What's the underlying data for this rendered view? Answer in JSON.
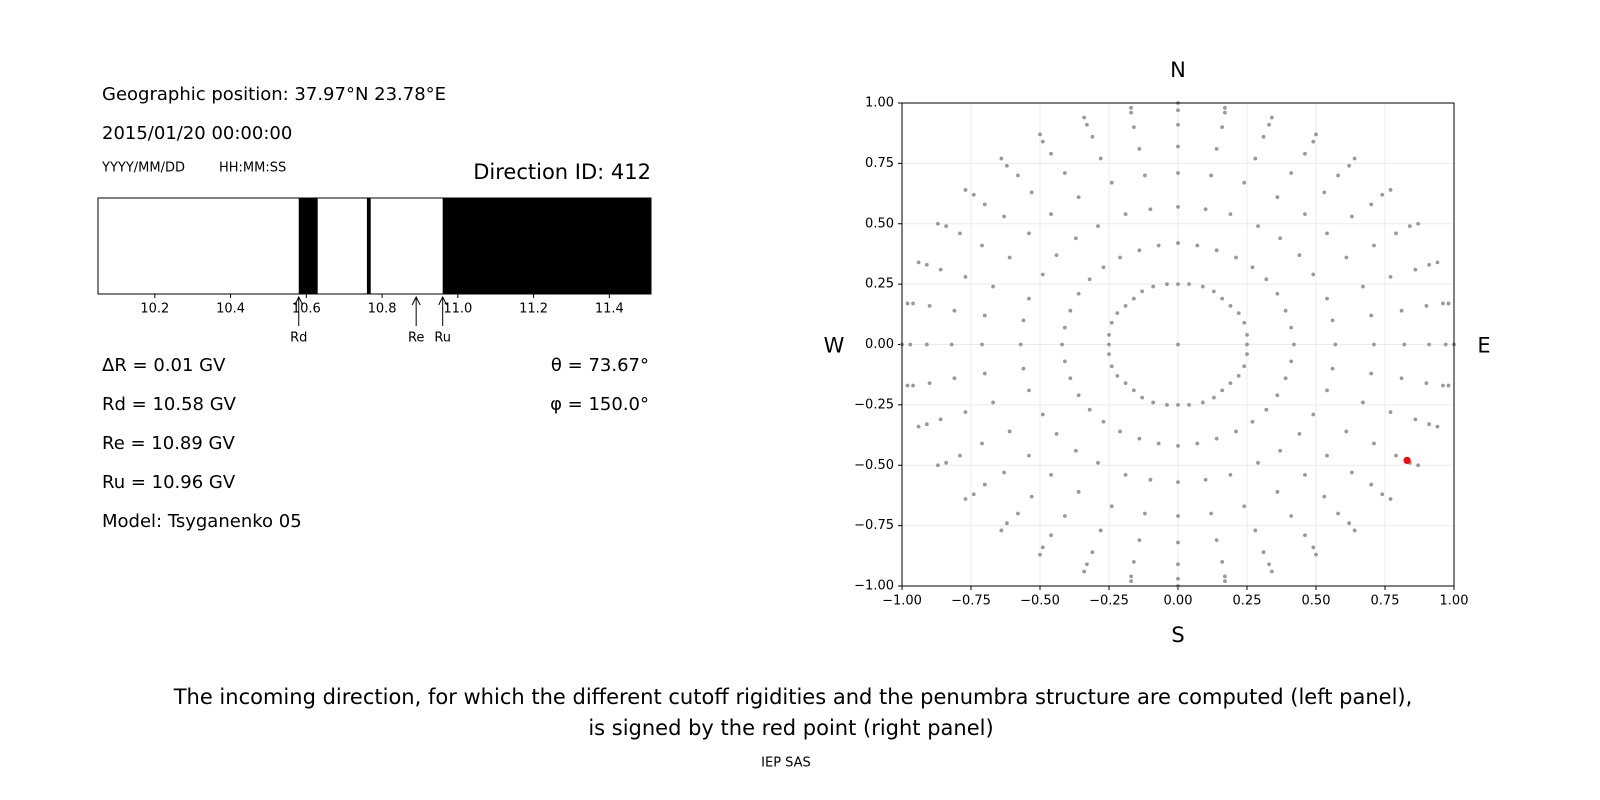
{
  "info": {
    "geographic_position": "Geographic position: 37.97°N 23.78°E",
    "datetime": "2015/01/20 00:00:00",
    "date_format": "YYYY/MM/DD",
    "time_format": "HH:MM:SS",
    "direction_id": "Direction ID: 412",
    "delta_r": "ΔR = 0.01 GV",
    "rd": "Rd = 10.58 GV",
    "re": "Re = 10.89 GV",
    "ru": "Ru = 10.96 GV",
    "model": "Model: Tsyganenko 05",
    "theta": "θ = 73.67°",
    "phi": "φ = 150.0°"
  },
  "chart_data": [
    {
      "type": "penumbra",
      "xlim": [
        10.05,
        11.51
      ],
      "xticks": [
        10.2,
        10.4,
        10.6,
        10.8,
        {
          "value": 11,
          "label": "11.0"
        },
        11.2,
        11.4
      ],
      "bands": [
        [
          10.58,
          10.63
        ],
        [
          10.76,
          10.77
        ],
        [
          10.96,
          11.51
        ]
      ],
      "band_color": "#000000",
      "markers": [
        {
          "label": "Rd",
          "value": 10.58
        },
        {
          "label": "Re",
          "value": 10.89
        },
        {
          "label": "Ru",
          "value": 10.96
        }
      ]
    },
    {
      "type": "scatter",
      "xlim": [
        -1,
        1
      ],
      "ylim": [
        -1,
        1
      ],
      "xticks": [
        {
          "value": -1,
          "label": "−1.00"
        },
        {
          "value": -0.75,
          "label": "−0.75"
        },
        {
          "value": -0.5,
          "label": "−0.50"
        },
        {
          "value": -0.25,
          "label": "−0.25"
        },
        {
          "value": 0,
          "label": "0.00"
        },
        {
          "value": 0.25,
          "label": "0.25"
        },
        {
          "value": 0.5,
          "label": "0.50"
        },
        {
          "value": 0.75,
          "label": "0.75"
        },
        {
          "value": 1,
          "label": "1.00"
        }
      ],
      "yticks": [
        {
          "value": -1,
          "label": "−1.00"
        },
        {
          "value": -0.75,
          "label": "−0.75"
        },
        {
          "value": -0.5,
          "label": "−0.50"
        },
        {
          "value": -0.25,
          "label": "−0.25"
        },
        {
          "value": 0,
          "label": "0.00"
        },
        {
          "value": 0.25,
          "label": "0.25"
        },
        {
          "value": 0.5,
          "label": "0.50"
        },
        {
          "value": 0.75,
          "label": "0.75"
        },
        {
          "value": 1,
          "label": "1.00"
        }
      ],
      "grid": true,
      "directions": [
        "N",
        "S",
        "W",
        "E"
      ],
      "series": [
        {
          "color": "#999999",
          "x": [
            0,
            0.25,
            0.25,
            0.24,
            0.22,
            0.19,
            0.16,
            0.13,
            0.09,
            0.04,
            0,
            -0.04,
            -0.09,
            -0.13,
            -0.16,
            -0.19,
            -0.22,
            -0.24,
            -0.25,
            -0.25,
            -0.25,
            -0.24,
            -0.22,
            -0.19,
            -0.16,
            -0.13,
            -0.09,
            -0.04,
            0,
            0.04,
            0.09,
            0.13,
            0.16,
            0.19,
            0.22,
            0.24,
            0.25,
            0.42,
            0.41,
            0.39,
            0.36,
            0.32,
            0.27,
            0.21,
            0.14,
            0.07,
            0,
            -0.07,
            -0.14,
            -0.21,
            -0.27,
            -0.32,
            -0.36,
            -0.39,
            -0.41,
            -0.42,
            -0.41,
            -0.39,
            -0.36,
            -0.32,
            -0.27,
            -0.21,
            -0.14,
            -0.07,
            0,
            0.07,
            0.14,
            0.21,
            0.27,
            0.32,
            0.36,
            0.39,
            0.41,
            0.57,
            0.56,
            0.54,
            0.49,
            0.44,
            0.37,
            0.29,
            0.19,
            0.1,
            0,
            -0.1,
            -0.19,
            -0.29,
            -0.37,
            -0.44,
            -0.49,
            -0.54,
            -0.56,
            -0.57,
            -0.56,
            -0.54,
            -0.49,
            -0.44,
            -0.37,
            -0.29,
            -0.19,
            -0.1,
            0,
            0.1,
            0.19,
            0.29,
            0.37,
            0.44,
            0.49,
            0.54,
            0.56,
            0.71,
            0.7,
            0.67,
            0.61,
            0.54,
            0.46,
            0.36,
            0.24,
            0.12,
            0,
            -0.12,
            -0.24,
            -0.36,
            -0.46,
            -0.54,
            -0.61,
            -0.67,
            -0.7,
            -0.71,
            -0.7,
            -0.67,
            -0.61,
            -0.54,
            -0.46,
            -0.36,
            -0.24,
            -0.12,
            0,
            0.12,
            0.24,
            0.36,
            0.46,
            0.54,
            0.61,
            0.67,
            0.7,
            0.82,
            0.81,
            0.77,
            0.71,
            0.63,
            0.53,
            0.41,
            0.28,
            0.14,
            0,
            -0.14,
            -0.28,
            -0.41,
            -0.53,
            -0.63,
            -0.71,
            -0.77,
            -0.81,
            -0.82,
            -0.81,
            -0.77,
            -0.71,
            -0.63,
            -0.53,
            -0.41,
            -0.28,
            -0.14,
            0,
            0.14,
            0.28,
            0.41,
            0.53,
            0.63,
            0.71,
            0.77,
            0.81,
            0.91,
            0.9,
            0.86,
            0.79,
            0.7,
            0.58,
            0.46,
            0.31,
            0.16,
            0,
            -0.16,
            -0.31,
            -0.46,
            -0.58,
            -0.7,
            -0.79,
            -0.86,
            -0.9,
            -0.91,
            -0.9,
            -0.86,
            -0.79,
            -0.7,
            -0.58,
            -0.46,
            -0.31,
            -0.16,
            0,
            0.16,
            0.31,
            0.46,
            0.58,
            0.7,
            0.79,
            0.86,
            0.9,
            0.97,
            0.96,
            0.91,
            0.84,
            0.74,
            0.62,
            0.49,
            0.33,
            0.17,
            0,
            -0.17,
            -0.33,
            -0.49,
            -0.62,
            -0.74,
            -0.84,
            -0.91,
            -0.96,
            -0.97,
            -0.96,
            -0.91,
            -0.84,
            -0.74,
            -0.62,
            -0.49,
            -0.33,
            -0.17,
            0,
            0.17,
            0.33,
            0.49,
            0.62,
            0.74,
            0.84,
            0.91,
            0.96,
            1,
            0.98,
            0.94,
            0.87,
            0.77,
            0.64,
            0.5,
            0.34,
            0.17,
            0,
            -0.17,
            -0.34,
            -0.5,
            -0.64,
            -0.77,
            -0.87,
            -0.94,
            -0.98,
            -1,
            -0.98,
            -0.94,
            -0.87,
            -0.77,
            -0.64,
            -0.5,
            -0.34,
            -0.17,
            0,
            0.17,
            0.34,
            0.5,
            0.64,
            0.77,
            0.87,
            0.94,
            0.98
          ],
          "y": [
            0,
            0,
            0.04,
            0.09,
            0.13,
            0.16,
            0.19,
            0.22,
            0.24,
            0.25,
            0.25,
            0.25,
            0.24,
            0.22,
            0.19,
            0.16,
            0.13,
            0.09,
            0.04,
            0,
            -0.04,
            -0.09,
            -0.13,
            -0.16,
            -0.19,
            -0.22,
            -0.24,
            -0.25,
            -0.25,
            -0.25,
            -0.24,
            -0.22,
            -0.19,
            -0.16,
            -0.13,
            -0.09,
            -0.04,
            0,
            0.07,
            0.14,
            0.21,
            0.27,
            0.32,
            0.36,
            0.39,
            0.41,
            0.42,
            0.41,
            0.39,
            0.36,
            0.32,
            0.27,
            0.21,
            0.14,
            0.07,
            0,
            -0.07,
            -0.14,
            -0.21,
            -0.27,
            -0.32,
            -0.36,
            -0.39,
            -0.41,
            -0.42,
            -0.41,
            -0.39,
            -0.36,
            -0.32,
            -0.27,
            -0.21,
            -0.14,
            -0.07,
            0,
            0.1,
            0.19,
            0.29,
            0.37,
            0.44,
            0.49,
            0.54,
            0.56,
            0.57,
            0.56,
            0.54,
            0.49,
            0.44,
            0.37,
            0.29,
            0.19,
            0.1,
            0,
            -0.1,
            -0.19,
            -0.29,
            -0.37,
            -0.44,
            -0.49,
            -0.54,
            -0.56,
            -0.57,
            -0.56,
            -0.54,
            -0.49,
            -0.44,
            -0.37,
            -0.29,
            -0.19,
            -0.1,
            0,
            0.12,
            0.24,
            0.36,
            0.46,
            0.54,
            0.61,
            0.67,
            0.7,
            0.71,
            0.7,
            0.67,
            0.61,
            0.54,
            0.46,
            0.36,
            0.24,
            0.12,
            0,
            -0.12,
            -0.24,
            -0.36,
            -0.46,
            -0.54,
            -0.61,
            -0.67,
            -0.7,
            -0.71,
            -0.7,
            -0.67,
            -0.61,
            -0.54,
            -0.46,
            -0.36,
            -0.24,
            -0.12,
            0,
            0.14,
            0.28,
            0.41,
            0.53,
            0.63,
            0.71,
            0.77,
            0.81,
            0.82,
            0.81,
            0.77,
            0.71,
            0.63,
            0.53,
            0.41,
            0.28,
            0.14,
            0,
            -0.14,
            -0.28,
            -0.41,
            -0.53,
            -0.63,
            -0.71,
            -0.77,
            -0.81,
            -0.82,
            -0.81,
            -0.77,
            -0.71,
            -0.63,
            -0.53,
            -0.41,
            -0.28,
            -0.14,
            0,
            0.16,
            0.31,
            0.46,
            0.58,
            0.7,
            0.79,
            0.86,
            0.9,
            0.91,
            0.9,
            0.86,
            0.79,
            0.7,
            0.58,
            0.46,
            0.31,
            0.16,
            0,
            -0.16,
            -0.31,
            -0.46,
            -0.58,
            -0.7,
            -0.79,
            -0.86,
            -0.9,
            -0.91,
            -0.9,
            -0.86,
            -0.79,
            -0.7,
            -0.58,
            -0.46,
            -0.31,
            -0.16,
            0,
            0.17,
            0.33,
            0.49,
            0.62,
            0.74,
            0.84,
            0.91,
            0.96,
            0.97,
            0.96,
            0.91,
            0.84,
            0.74,
            0.62,
            0.49,
            0.33,
            0.17,
            0,
            -0.17,
            -0.33,
            -0.49,
            -0.62,
            -0.74,
            -0.84,
            -0.91,
            -0.96,
            -0.97,
            -0.96,
            -0.91,
            -0.84,
            -0.74,
            -0.62,
            -0.49,
            -0.33,
            -0.17,
            0,
            0.17,
            0.34,
            0.5,
            0.64,
            0.77,
            0.87,
            0.94,
            0.98,
            1,
            0.98,
            0.94,
            0.87,
            0.77,
            0.64,
            0.5,
            0.34,
            0.17,
            0,
            -0.17,
            -0.34,
            -0.5,
            -0.64,
            -0.77,
            -0.87,
            -0.94,
            -0.98,
            -1,
            -0.98,
            -0.94,
            -0.87,
            -0.77,
            -0.64,
            -0.5,
            -0.34,
            -0.17
          ]
        },
        {
          "color": "#ff0000",
          "x": [
            0.83
          ],
          "y": [
            -0.48
          ]
        }
      ]
    }
  ],
  "caption": [
    "The incoming direction, for which the different cutoff rigidities and the penumbra structure are computed (left panel),",
    "is signed by the red point (right panel)"
  ],
  "footer": "IEP SAS"
}
